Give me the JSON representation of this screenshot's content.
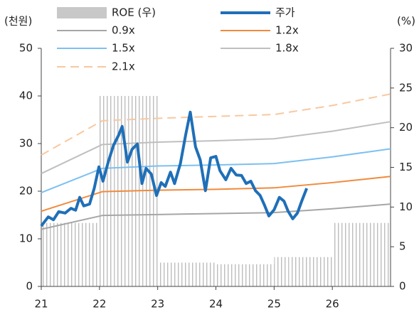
{
  "chart_data": {
    "type": "line",
    "y_label": "(천원)",
    "y2_label": "(%)",
    "xlim": [
      21,
      27
    ],
    "xticks": [
      21,
      22,
      23,
      24,
      25,
      26
    ],
    "ylim": [
      0,
      50
    ],
    "yticks": [
      0,
      10,
      20,
      30,
      40,
      50
    ],
    "y2lim": [
      0,
      30
    ],
    "y2ticks": [
      0,
      5,
      10,
      15,
      20,
      25,
      30
    ],
    "grid": false,
    "series": [
      {
        "name": "ROE (우)",
        "kind": "bar",
        "axis": "y2",
        "color": "#c8c8c8",
        "x": [
          21,
          21.25,
          21.5,
          21.75,
          22,
          22.25,
          22.5,
          22.75,
          23,
          23.25,
          23.5,
          23.75,
          24,
          24.25,
          24.5,
          24.75,
          25,
          25.25,
          25.5,
          25.75,
          26,
          26.25,
          26.5,
          26.75
        ],
        "values": [
          8,
          8,
          8,
          8,
          24,
          24,
          24,
          24,
          3,
          3,
          3,
          3,
          2.8,
          2.8,
          2.8,
          2.8,
          3.7,
          3.7,
          3.7,
          3.7,
          8,
          8,
          8,
          8
        ]
      },
      {
        "name": "주가",
        "kind": "line",
        "color": "#1f6fb8",
        "width": 4,
        "x": [
          21.0,
          21.12,
          21.21,
          21.3,
          21.41,
          21.51,
          21.59,
          21.66,
          21.73,
          21.83,
          21.91,
          21.99,
          22.06,
          22.15,
          22.24,
          22.33,
          22.39,
          22.48,
          22.56,
          22.65,
          22.73,
          22.8,
          22.89,
          22.98,
          23.06,
          23.13,
          23.22,
          23.29,
          23.39,
          23.48,
          23.56,
          23.65,
          23.73,
          23.82,
          23.91,
          24.0,
          24.07,
          24.17,
          24.26,
          24.35,
          24.44,
          24.52,
          24.6,
          24.68,
          24.76,
          24.83,
          24.91,
          25.0,
          25.09,
          25.17,
          25.24,
          25.32,
          25.4,
          25.48,
          25.56
        ],
        "values": [
          12.7,
          14.6,
          14.0,
          15.7,
          15.4,
          16.4,
          16.0,
          18.7,
          16.9,
          17.3,
          20.6,
          25.1,
          22.1,
          26.1,
          29.6,
          31.8,
          33.6,
          26.1,
          28.8,
          29.9,
          21.6,
          24.8,
          23.6,
          19.1,
          21.8,
          21.0,
          24.0,
          21.6,
          25.8,
          31.8,
          36.6,
          29.3,
          26.6,
          20.1,
          27.0,
          27.3,
          24.3,
          22.4,
          24.8,
          23.4,
          23.3,
          21.6,
          22.1,
          20.1,
          19.1,
          17.2,
          14.8,
          16.1,
          18.7,
          17.9,
          15.8,
          14.2,
          15.4,
          18.1,
          20.6
        ]
      },
      {
        "name": "0.9x",
        "kind": "line",
        "color": "#a6a6a6",
        "width": 2,
        "x": [
          21,
          22.05,
          23,
          24,
          25,
          26,
          27
        ],
        "values": [
          12.0,
          14.9,
          15.1,
          15.3,
          15.5,
          16.3,
          17.3
        ]
      },
      {
        "name": "1.2x",
        "kind": "line",
        "color": "#f08a3c",
        "width": 2,
        "x": [
          21,
          22.05,
          23,
          24,
          25,
          26,
          27
        ],
        "values": [
          15.8,
          19.9,
          20.2,
          20.4,
          20.7,
          21.8,
          23.1
        ]
      },
      {
        "name": "1.5x",
        "kind": "line",
        "color": "#7cc0f0",
        "width": 2,
        "x": [
          21,
          22.05,
          23,
          24,
          25,
          26,
          27
        ],
        "values": [
          19.7,
          24.8,
          25.3,
          25.5,
          25.8,
          27.2,
          28.9
        ]
      },
      {
        "name": "1.8x",
        "kind": "line",
        "color": "#bfbfbf",
        "width": 2,
        "x": [
          21,
          22.05,
          23,
          24,
          25,
          26,
          27
        ],
        "values": [
          23.7,
          29.8,
          30.3,
          30.6,
          31.0,
          32.6,
          34.6
        ]
      },
      {
        "name": "2.1x",
        "kind": "line",
        "color": "#f8c8a0",
        "width": 2,
        "dash": true,
        "x": [
          21,
          22.05,
          23,
          24,
          25,
          26,
          27
        ],
        "values": [
          27.6,
          34.8,
          35.3,
          35.7,
          36.1,
          38.0,
          40.4
        ]
      }
    ]
  }
}
